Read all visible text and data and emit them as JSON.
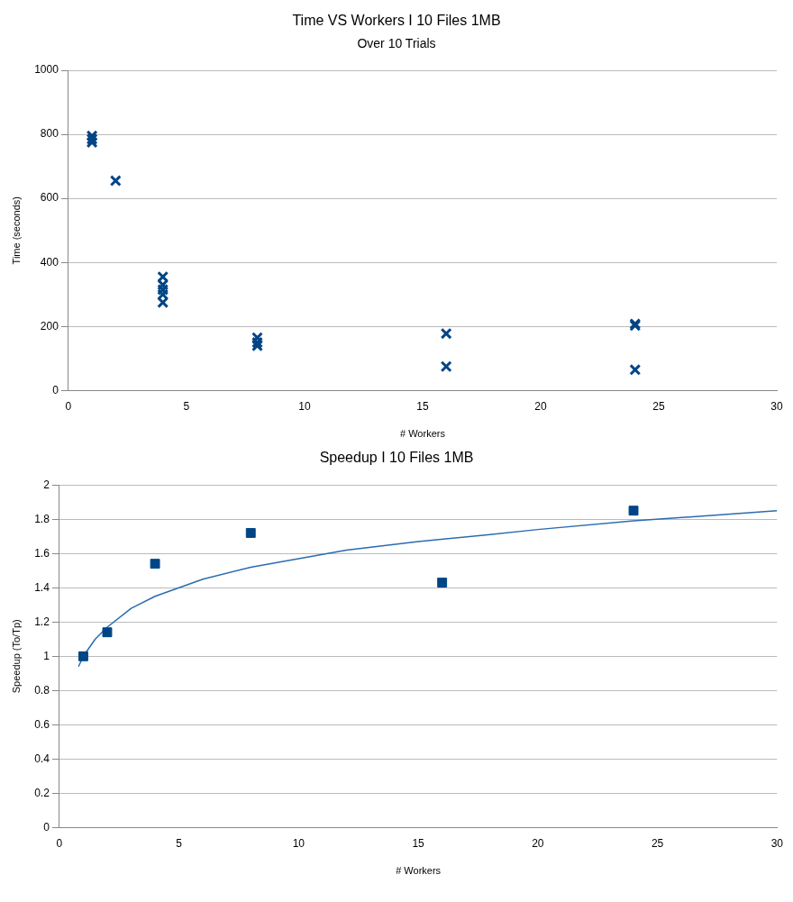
{
  "chart_data": [
    {
      "type": "scatter",
      "title": "Time VS Workers I 10 Files 1MB",
      "subtitle": "Over 10 Trials",
      "xlabel": "# Workers",
      "ylabel": "Time (seconds)",
      "marker": "cross",
      "grid": "y",
      "xlim": [
        0,
        30
      ],
      "xticks": [
        0,
        5,
        10,
        15,
        20,
        25,
        30
      ],
      "ylim": [
        0,
        1000
      ],
      "yticks": [
        0,
        200,
        400,
        600,
        800,
        1000
      ],
      "series": [
        {
          "color": "#004586",
          "x": [
            1,
            1,
            1,
            2,
            4,
            4,
            4,
            4,
            4,
            8,
            8,
            8,
            16,
            16,
            24,
            24,
            24
          ],
          "values": [
            795,
            785,
            775,
            655,
            355,
            330,
            315,
            300,
            275,
            165,
            150,
            140,
            178,
            75,
            208,
            203,
            65
          ]
        }
      ]
    },
    {
      "type": "scatter",
      "title": "Speedup I 10 Files 1MB",
      "xlabel": "# Workers",
      "ylabel": "Speedup (To/Tp)",
      "marker": "square",
      "grid": "y",
      "xlim": [
        0,
        30
      ],
      "xticks": [
        0,
        5,
        10,
        15,
        20,
        25,
        30
      ],
      "ylim": [
        0,
        2
      ],
      "yticks": [
        0,
        0.2,
        0.4,
        0.6,
        0.8,
        1,
        1.2,
        1.4,
        1.6,
        1.8,
        2
      ],
      "series": [
        {
          "color": "#004586",
          "x": [
            1,
            2,
            4,
            8,
            16,
            24
          ],
          "values": [
            1,
            1.14,
            1.54,
            1.72,
            1.43,
            1.85
          ]
        },
        {
          "type": "line",
          "marker": "none",
          "color": "#2a6cb0",
          "x": [
            0.8,
            1,
            1.5,
            2,
            3,
            4,
            5,
            6,
            8,
            10,
            12,
            15,
            18,
            20,
            24,
            27,
            30
          ],
          "values": [
            0.94,
            1,
            1.1,
            1.17,
            1.28,
            1.35,
            1.4,
            1.45,
            1.52,
            1.57,
            1.62,
            1.67,
            1.71,
            1.74,
            1.79,
            1.82,
            1.85
          ]
        }
      ]
    }
  ]
}
